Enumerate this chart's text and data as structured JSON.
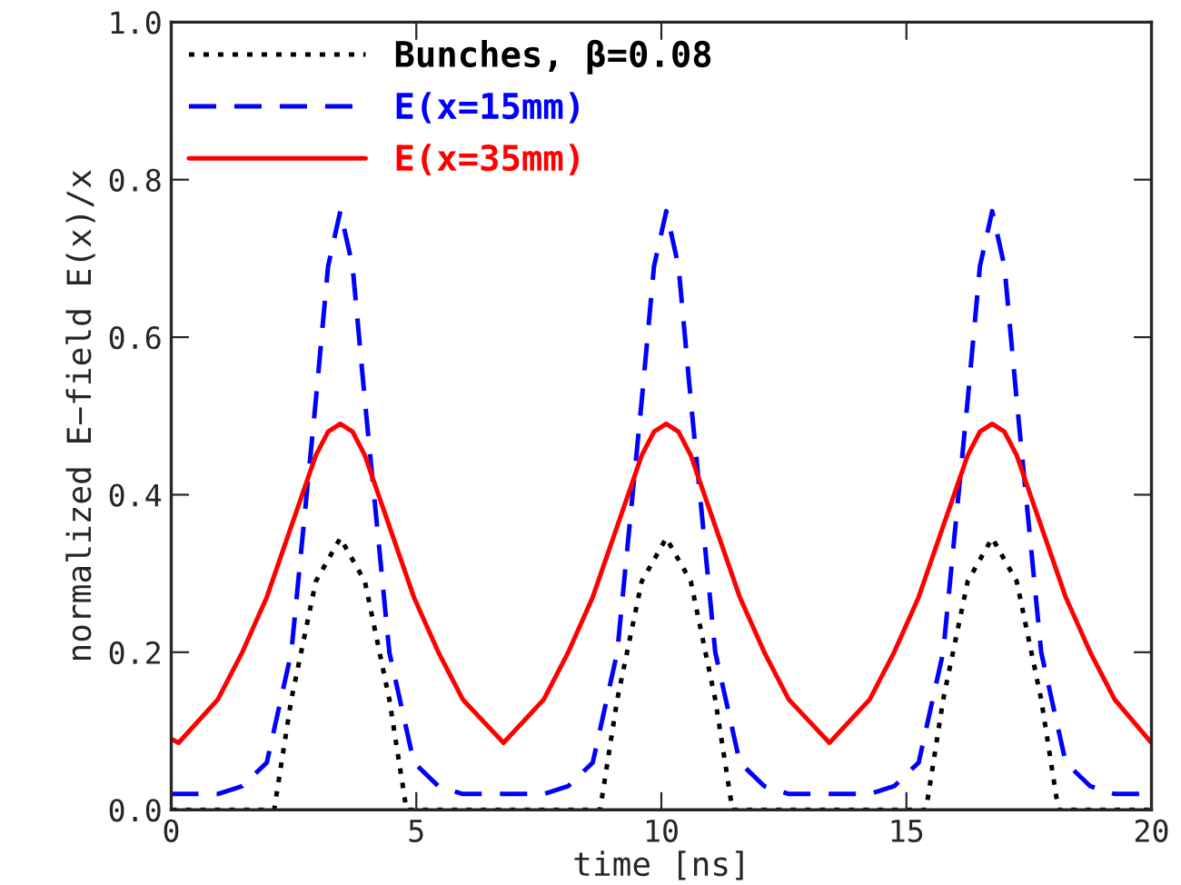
{
  "chart_data": {
    "type": "line",
    "xlabel": "time [ns]",
    "ylabel": "normalized E−field E(x)/x",
    "xlim": [
      0,
      20
    ],
    "xticks": [
      0,
      5,
      10,
      15,
      20
    ],
    "ylim": [
      0,
      1.0
    ],
    "yticks": [
      {
        "value": 0,
        "label": "0.0"
      },
      0.2,
      0.4,
      0.6,
      0.8,
      {
        "value": 1.0,
        "label": "1.0"
      }
    ],
    "grid": false,
    "legend": "top left",
    "marker": "none",
    "series": [
      {
        "name": "Bunches, β=0.08",
        "color": "#000000",
        "line_style": "dotted",
        "x": [
          0,
          2.1,
          2.45,
          2.95,
          3.45,
          3.95,
          4.45,
          4.8,
          8.75,
          9.1,
          9.6,
          10.1,
          10.6,
          11.1,
          11.45,
          15.4,
          15.75,
          16.25,
          16.75,
          17.25,
          17.75,
          18.1,
          20
        ],
        "values": [
          0,
          0,
          0.14,
          0.29,
          0.345,
          0.29,
          0.14,
          0,
          0,
          0.14,
          0.29,
          0.345,
          0.29,
          0.14,
          0,
          0,
          0.14,
          0.29,
          0.345,
          0.29,
          0.14,
          0,
          0
        ]
      },
      {
        "name": "E(x=15mm)",
        "color": "#0000ff",
        "line_style": "dashed",
        "x": [
          0,
          0.15,
          0.95,
          1.45,
          1.95,
          2.45,
          2.95,
          3.2,
          3.45,
          3.7,
          3.95,
          4.45,
          4.95,
          5.45,
          5.95,
          6.78,
          7.6,
          8.1,
          8.6,
          9.1,
          9.6,
          9.85,
          10.1,
          10.35,
          10.6,
          11.1,
          11.6,
          12.1,
          12.6,
          13.43,
          14.25,
          14.75,
          15.25,
          15.75,
          16.25,
          16.5,
          16.75,
          17.0,
          17.25,
          17.75,
          18.25,
          18.75,
          19.25,
          20
        ],
        "values": [
          0.02,
          0.02,
          0.02,
          0.03,
          0.06,
          0.2,
          0.52,
          0.69,
          0.76,
          0.69,
          0.52,
          0.2,
          0.06,
          0.03,
          0.02,
          0.02,
          0.02,
          0.03,
          0.06,
          0.2,
          0.52,
          0.69,
          0.76,
          0.69,
          0.52,
          0.2,
          0.06,
          0.03,
          0.02,
          0.02,
          0.02,
          0.03,
          0.06,
          0.2,
          0.52,
          0.69,
          0.76,
          0.69,
          0.52,
          0.2,
          0.06,
          0.03,
          0.02,
          0.02
        ]
      },
      {
        "name": "E(x=35mm)",
        "color": "#ff0000",
        "line_style": "solid",
        "x": [
          0,
          0.15,
          0.95,
          1.45,
          1.95,
          2.45,
          2.95,
          3.2,
          3.45,
          3.7,
          3.95,
          4.45,
          4.95,
          5.45,
          5.95,
          6.78,
          7.6,
          8.1,
          8.6,
          9.1,
          9.6,
          9.85,
          10.1,
          10.35,
          10.6,
          11.1,
          11.6,
          12.1,
          12.6,
          13.43,
          14.25,
          14.75,
          15.25,
          15.75,
          16.25,
          16.5,
          16.75,
          17.0,
          17.25,
          17.75,
          18.25,
          18.75,
          19.25,
          20
        ],
        "values": [
          0.09,
          0.085,
          0.14,
          0.2,
          0.27,
          0.36,
          0.45,
          0.48,
          0.49,
          0.48,
          0.45,
          0.36,
          0.27,
          0.2,
          0.14,
          0.085,
          0.14,
          0.2,
          0.27,
          0.36,
          0.45,
          0.48,
          0.49,
          0.48,
          0.45,
          0.36,
          0.27,
          0.2,
          0.14,
          0.085,
          0.14,
          0.2,
          0.27,
          0.36,
          0.45,
          0.48,
          0.49,
          0.48,
          0.45,
          0.36,
          0.27,
          0.2,
          0.14,
          0.085
        ]
      }
    ]
  }
}
